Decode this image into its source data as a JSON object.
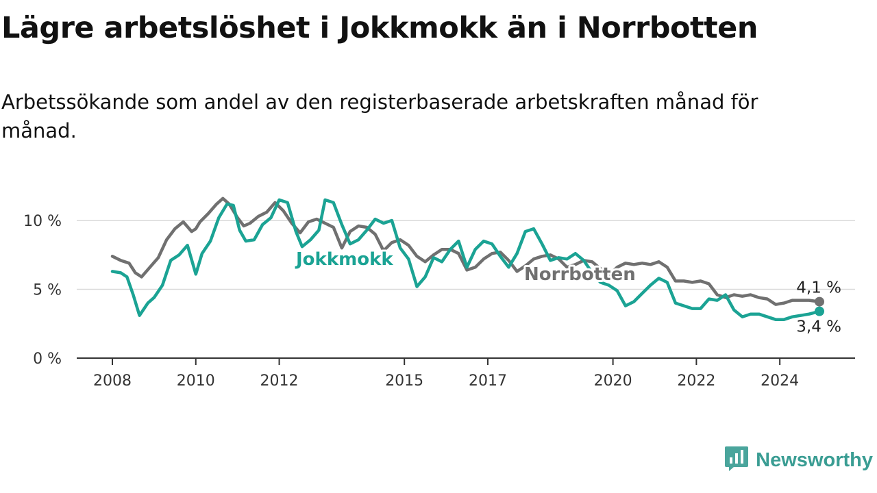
{
  "header": {
    "title": "Lägre arbetslöshet i Jokkmokk än i Norrbotten",
    "subtitle": "Arbetssökande som andel av den registerbaserade arbetskraften månad för månad."
  },
  "brand": {
    "name": "Newsworthy",
    "icon": "newsworthy-logo-icon",
    "color": "#4aa59c"
  },
  "chart_data": {
    "type": "line",
    "title": "Lägre arbetslöshet i Jokkmokk än i Norrbotten",
    "xlabel": "",
    "ylabel": "",
    "ylim": [
      0,
      12
    ],
    "xlim": [
      2008,
      2025.1
    ],
    "grid": true,
    "y_ticks": [
      0,
      5,
      10
    ],
    "y_tick_labels": [
      "0 %",
      "5 %",
      "10 %"
    ],
    "x_ticks": [
      2008,
      2010,
      2012,
      2015,
      2017,
      2020,
      2022,
      2024
    ],
    "x_tick_labels": [
      "2008",
      "2010",
      "2012",
      "2015",
      "2017",
      "2020",
      "2022",
      "2024"
    ],
    "series": [
      {
        "name": "Norrbotten",
        "color": "#707070",
        "label_text": "Norrbotten",
        "end_label": "4,1 %",
        "end_value": 4.1,
        "points": [
          [
            2008.0,
            7.4
          ],
          [
            2008.2,
            7.1
          ],
          [
            2008.4,
            6.9
          ],
          [
            2008.55,
            6.2
          ],
          [
            2008.7,
            5.9
          ],
          [
            2008.9,
            6.6
          ],
          [
            2009.1,
            7.3
          ],
          [
            2009.3,
            8.6
          ],
          [
            2009.5,
            9.4
          ],
          [
            2009.7,
            9.9
          ],
          [
            2009.9,
            9.2
          ],
          [
            2010.0,
            9.4
          ],
          [
            2010.1,
            9.9
          ],
          [
            2010.3,
            10.5
          ],
          [
            2010.5,
            11.2
          ],
          [
            2010.65,
            11.6
          ],
          [
            2010.8,
            11.2
          ],
          [
            2011.0,
            10.2
          ],
          [
            2011.15,
            9.6
          ],
          [
            2011.3,
            9.8
          ],
          [
            2011.5,
            10.3
          ],
          [
            2011.7,
            10.6
          ],
          [
            2011.9,
            11.3
          ],
          [
            2012.1,
            10.7
          ],
          [
            2012.3,
            9.8
          ],
          [
            2012.5,
            9.1
          ],
          [
            2012.7,
            9.9
          ],
          [
            2012.9,
            10.1
          ],
          [
            2013.1,
            9.8
          ],
          [
            2013.3,
            9.5
          ],
          [
            2013.5,
            8.0
          ],
          [
            2013.7,
            9.2
          ],
          [
            2013.9,
            9.6
          ],
          [
            2014.1,
            9.5
          ],
          [
            2014.3,
            9.0
          ],
          [
            2014.5,
            7.8
          ],
          [
            2014.7,
            8.4
          ],
          [
            2014.9,
            8.6
          ],
          [
            2015.1,
            8.2
          ],
          [
            2015.3,
            7.4
          ],
          [
            2015.5,
            7.0
          ],
          [
            2015.7,
            7.5
          ],
          [
            2015.9,
            7.9
          ],
          [
            2016.1,
            7.9
          ],
          [
            2016.3,
            7.6
          ],
          [
            2016.5,
            6.4
          ],
          [
            2016.7,
            6.6
          ],
          [
            2016.9,
            7.2
          ],
          [
            2017.1,
            7.6
          ],
          [
            2017.3,
            7.7
          ],
          [
            2017.5,
            7.1
          ],
          [
            2017.7,
            6.3
          ],
          [
            2017.9,
            6.7
          ],
          [
            2018.1,
            7.2
          ],
          [
            2018.3,
            7.4
          ],
          [
            2018.5,
            7.5
          ],
          [
            2018.7,
            7.2
          ],
          [
            2018.9,
            6.6
          ],
          [
            2019.1,
            6.8
          ],
          [
            2019.3,
            7.1
          ],
          [
            2019.5,
            7.0
          ],
          [
            2019.7,
            6.5
          ],
          [
            2019.9,
            6.0
          ],
          [
            2020.1,
            6.6
          ],
          [
            2020.3,
            6.9
          ],
          [
            2020.5,
            6.8
          ],
          [
            2020.7,
            6.9
          ],
          [
            2020.9,
            6.8
          ],
          [
            2021.1,
            7.0
          ],
          [
            2021.3,
            6.6
          ],
          [
            2021.5,
            5.6
          ],
          [
            2021.7,
            5.6
          ],
          [
            2021.9,
            5.5
          ],
          [
            2022.1,
            5.6
          ],
          [
            2022.3,
            5.4
          ],
          [
            2022.5,
            4.6
          ],
          [
            2022.7,
            4.4
          ],
          [
            2022.9,
            4.6
          ],
          [
            2023.1,
            4.5
          ],
          [
            2023.3,
            4.6
          ],
          [
            2023.5,
            4.4
          ],
          [
            2023.7,
            4.3
          ],
          [
            2023.9,
            3.9
          ],
          [
            2024.1,
            4.0
          ],
          [
            2024.3,
            4.2
          ],
          [
            2024.5,
            4.2
          ],
          [
            2024.7,
            4.2
          ],
          [
            2024.95,
            4.1
          ]
        ]
      },
      {
        "name": "Jokkmokk",
        "color": "#1ba394",
        "label_text": "Jokkmokk",
        "end_label": "3,4 %",
        "end_value": 3.4,
        "points": [
          [
            2008.0,
            6.3
          ],
          [
            2008.2,
            6.2
          ],
          [
            2008.35,
            5.9
          ],
          [
            2008.5,
            4.6
          ],
          [
            2008.65,
            3.1
          ],
          [
            2008.85,
            4.0
          ],
          [
            2009.0,
            4.4
          ],
          [
            2009.2,
            5.3
          ],
          [
            2009.4,
            7.1
          ],
          [
            2009.6,
            7.5
          ],
          [
            2009.8,
            8.2
          ],
          [
            2010.0,
            6.1
          ],
          [
            2010.15,
            7.6
          ],
          [
            2010.35,
            8.5
          ],
          [
            2010.55,
            10.2
          ],
          [
            2010.75,
            11.2
          ],
          [
            2010.9,
            11.1
          ],
          [
            2011.05,
            9.3
          ],
          [
            2011.2,
            8.5
          ],
          [
            2011.4,
            8.6
          ],
          [
            2011.6,
            9.7
          ],
          [
            2011.8,
            10.2
          ],
          [
            2012.0,
            11.5
          ],
          [
            2012.2,
            11.3
          ],
          [
            2012.4,
            9.2
          ],
          [
            2012.55,
            8.1
          ],
          [
            2012.75,
            8.6
          ],
          [
            2012.95,
            9.3
          ],
          [
            2013.1,
            11.5
          ],
          [
            2013.3,
            11.3
          ],
          [
            2013.5,
            9.7
          ],
          [
            2013.7,
            8.3
          ],
          [
            2013.9,
            8.6
          ],
          [
            2014.1,
            9.3
          ],
          [
            2014.3,
            10.1
          ],
          [
            2014.5,
            9.8
          ],
          [
            2014.7,
            10.0
          ],
          [
            2014.9,
            8.0
          ],
          [
            2015.1,
            7.2
          ],
          [
            2015.3,
            5.2
          ],
          [
            2015.5,
            5.9
          ],
          [
            2015.7,
            7.3
          ],
          [
            2015.9,
            7.0
          ],
          [
            2016.1,
            7.9
          ],
          [
            2016.3,
            8.5
          ],
          [
            2016.5,
            6.6
          ],
          [
            2016.7,
            7.9
          ],
          [
            2016.9,
            8.5
          ],
          [
            2017.1,
            8.3
          ],
          [
            2017.3,
            7.4
          ],
          [
            2017.5,
            6.6
          ],
          [
            2017.7,
            7.6
          ],
          [
            2017.9,
            9.2
          ],
          [
            2018.1,
            9.4
          ],
          [
            2018.3,
            8.3
          ],
          [
            2018.5,
            7.1
          ],
          [
            2018.7,
            7.3
          ],
          [
            2018.9,
            7.2
          ],
          [
            2019.1,
            7.6
          ],
          [
            2019.3,
            7.1
          ],
          [
            2019.5,
            6.2
          ],
          [
            2019.7,
            5.5
          ],
          [
            2019.9,
            5.3
          ],
          [
            2020.1,
            4.9
          ],
          [
            2020.3,
            3.8
          ],
          [
            2020.5,
            4.1
          ],
          [
            2020.7,
            4.7
          ],
          [
            2020.9,
            5.3
          ],
          [
            2021.1,
            5.8
          ],
          [
            2021.3,
            5.5
          ],
          [
            2021.5,
            4.0
          ],
          [
            2021.7,
            3.8
          ],
          [
            2021.9,
            3.6
          ],
          [
            2022.1,
            3.6
          ],
          [
            2022.3,
            4.3
          ],
          [
            2022.5,
            4.2
          ],
          [
            2022.7,
            4.6
          ],
          [
            2022.9,
            3.5
          ],
          [
            2023.1,
            3.0
          ],
          [
            2023.3,
            3.2
          ],
          [
            2023.5,
            3.2
          ],
          [
            2023.7,
            3.0
          ],
          [
            2023.9,
            2.8
          ],
          [
            2024.1,
            2.8
          ],
          [
            2024.3,
            3.0
          ],
          [
            2024.5,
            3.1
          ],
          [
            2024.7,
            3.2
          ],
          [
            2024.95,
            3.4
          ]
        ]
      }
    ]
  }
}
